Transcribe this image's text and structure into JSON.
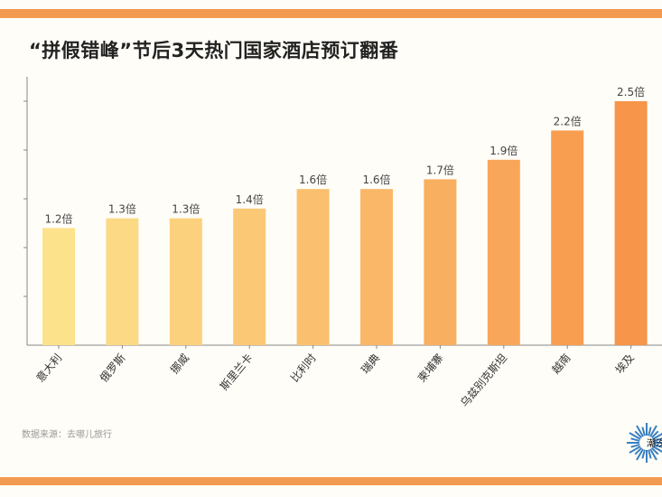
{
  "chart_data": {
    "type": "bar",
    "title": "“拼假错峰”节后3天热门国家酒店预订翻番",
    "categories": [
      "意大利",
      "俄罗斯",
      "挪威",
      "斯里兰卡",
      "比利时",
      "瑞典",
      "柬埔寨",
      "乌兹别克斯坦",
      "越南",
      "埃及"
    ],
    "values": [
      1.2,
      1.3,
      1.3,
      1.4,
      1.6,
      1.6,
      1.7,
      1.9,
      2.2,
      2.5
    ],
    "data_labels": [
      "1.2倍",
      "1.3倍",
      "1.3倍",
      "1.4倍",
      "1.6倍",
      "1.6倍",
      "1.7倍",
      "1.9倍",
      "2.2倍",
      "2.5倍"
    ],
    "xlabel": "",
    "ylabel": "",
    "ylim": [
      0,
      2.75
    ],
    "ytick_step": 0.5,
    "grid": false,
    "colors": {
      "start": "#fde28c",
      "end": "#f7954a",
      "accent": "#f39a52"
    }
  },
  "source": "数据来源：去哪儿旅行",
  "logo_text": "潮汐"
}
